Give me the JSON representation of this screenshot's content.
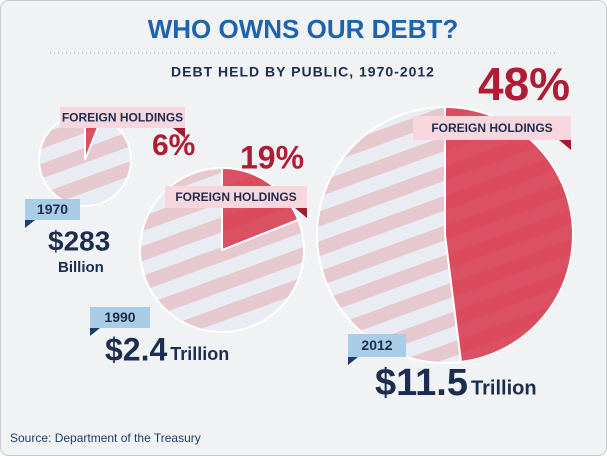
{
  "header": {
    "title": "WHO OWNS OUR DEBT?",
    "subtitle": "DEBT HELD BY PUBLIC, 1970-2012"
  },
  "chart_data": [
    {
      "type": "pie",
      "year": "1970",
      "amount": "$283",
      "unit": "Billion",
      "categories": [
        "FOREIGN HOLDINGS"
      ],
      "values": [
        6
      ],
      "value_labels": [
        "6%"
      ],
      "color": "#d9344a"
    },
    {
      "type": "pie",
      "year": "1990",
      "amount": "$2.4",
      "unit": "Trillion",
      "categories": [
        "FOREIGN HOLDINGS"
      ],
      "values": [
        19
      ],
      "value_labels": [
        "19%"
      ],
      "color": "#d9344a"
    },
    {
      "type": "pie",
      "year": "2012",
      "amount": "$11.5",
      "unit": "Trillion",
      "categories": [
        "FOREIGN HOLDINGS"
      ],
      "values": [
        48
      ],
      "value_labels": [
        "48%"
      ],
      "color": "#d9344a"
    }
  ],
  "footer": {
    "source": "Source: Department of the Treasury"
  }
}
